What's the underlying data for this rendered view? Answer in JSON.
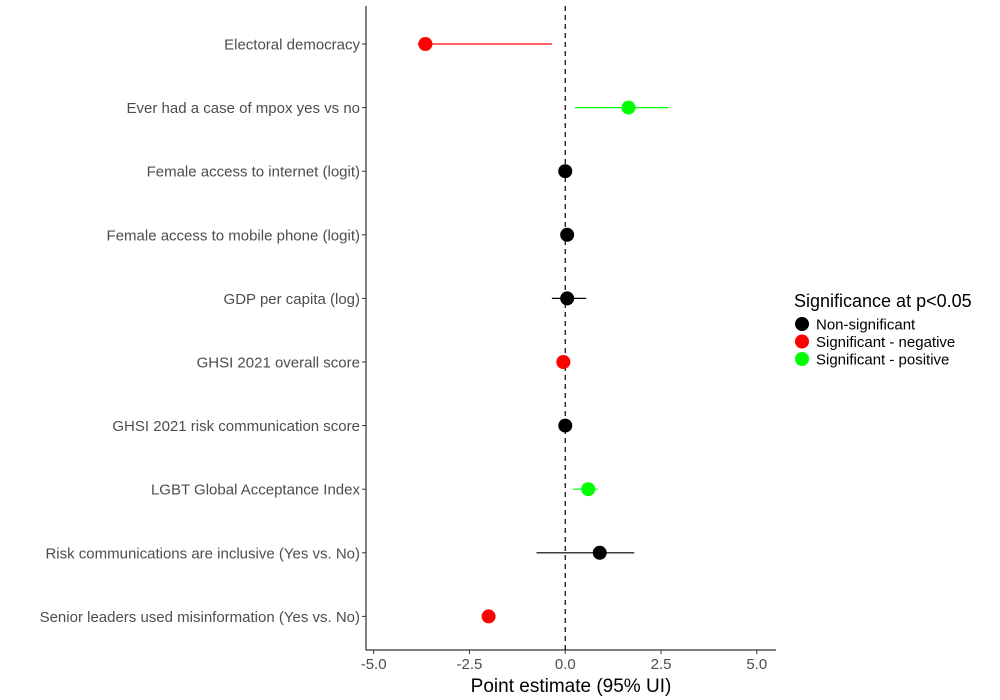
{
  "chart_data": {
    "type": "forest",
    "xlabel": "Point estimate (95% UI)",
    "xlim": [
      -5.2,
      5.5
    ],
    "xticks": [
      -5.0,
      -2.5,
      0.0,
      2.5,
      5.0
    ],
    "xtick_labels": [
      "-5.0",
      "-2.5",
      "0.0",
      "2.5",
      "5.0"
    ],
    "reference_line": 0,
    "grid": false,
    "legend": {
      "title": "Significance at p<0.05",
      "position": "right",
      "entries": [
        {
          "label": "Non-significant",
          "color": "#000000"
        },
        {
          "label": "Significant - negative",
          "color": "#ff0000"
        },
        {
          "label": "Significant - positive",
          "color": "#00ff00"
        }
      ]
    },
    "rows": [
      {
        "label": "Electoral democracy",
        "estimate": -3.65,
        "lower": -3.85,
        "upper": -0.35,
        "significance": "Significant - negative"
      },
      {
        "label": "Ever had a case of mpox yes vs no",
        "estimate": 1.65,
        "lower": 0.25,
        "upper": 2.7,
        "significance": "Significant - positive"
      },
      {
        "label": "Female access to internet (logit)",
        "estimate": 0.0,
        "lower": -0.05,
        "upper": 0.05,
        "significance": "Non-significant"
      },
      {
        "label": "Female access to mobile phone (logit)",
        "estimate": 0.05,
        "lower": 0.0,
        "upper": 0.1,
        "significance": "Non-significant"
      },
      {
        "label": "GDP per capita (log)",
        "estimate": 0.05,
        "lower": -0.35,
        "upper": 0.55,
        "significance": "Non-significant"
      },
      {
        "label": "GHSI 2021 overall score",
        "estimate": -0.05,
        "lower": -0.1,
        "upper": 0.0,
        "significance": "Significant - negative"
      },
      {
        "label": "GHSI 2021 risk communication score",
        "estimate": 0.0,
        "lower": -0.05,
        "upper": 0.05,
        "significance": "Non-significant"
      },
      {
        "label": "LGBT Global Acceptance Index",
        "estimate": 0.6,
        "lower": 0.2,
        "upper": 0.85,
        "significance": "Significant - positive"
      },
      {
        "label": "Risk communications are inclusive (Yes vs. No)",
        "estimate": 0.9,
        "lower": -0.75,
        "upper": 1.8,
        "significance": "Non-significant"
      },
      {
        "label": "Senior leaders used misinformation (Yes vs. No)",
        "estimate": -2.0,
        "lower": -2.05,
        "upper": -1.95,
        "significance": "Significant - negative"
      }
    ]
  }
}
